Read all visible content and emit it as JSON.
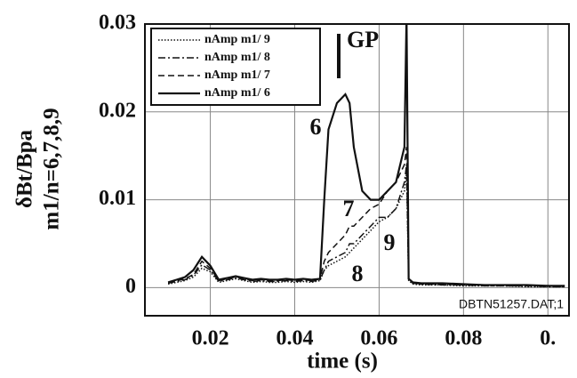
{
  "chart_data": {
    "type": "line",
    "x_label": "time (s)",
    "y_label": [
      "δBt/Bpa",
      "m1/n=6,7,8,9"
    ],
    "x": [
      0.006,
      0.008,
      0.01,
      0.012,
      0.014,
      0.016,
      0.018,
      0.02,
      0.022,
      0.024,
      0.026,
      0.028,
      0.03,
      0.032,
      0.034,
      0.036,
      0.038,
      0.04,
      0.042,
      0.044,
      0.046,
      0.047,
      0.048,
      0.05,
      0.052,
      0.053,
      0.054,
      0.056,
      0.058,
      0.06,
      0.062,
      0.064,
      0.066,
      0.0665,
      0.067,
      0.068,
      0.07,
      0.075,
      0.08,
      0.085,
      0.09,
      0.095,
      0.1,
      0.104
    ],
    "series": [
      {
        "name": "nAmp m1/ 9",
        "color": "#111111",
        "style": "dotted",
        "values": [
          null,
          null,
          0.0004,
          0.0006,
          0.0008,
          0.0012,
          0.0022,
          0.0018,
          0.0006,
          0.0008,
          0.001,
          0.0008,
          0.0006,
          0.0007,
          0.0006,
          0.0006,
          0.0007,
          0.0006,
          0.0007,
          0.0006,
          0.0008,
          0.002,
          0.0025,
          0.003,
          0.0035,
          0.004,
          0.0045,
          0.0055,
          0.0065,
          0.0075,
          0.008,
          0.009,
          0.011,
          0.013,
          0.0008,
          0.0004,
          0.0003,
          0.0003,
          0.0002,
          0.0002,
          0.0002,
          0.0001,
          0.0001,
          0.0001
        ]
      },
      {
        "name": "nAmp m1/ 8",
        "color": "#111111",
        "style": "dashdot",
        "values": [
          null,
          null,
          0.0005,
          0.0007,
          0.0009,
          0.0014,
          0.0026,
          0.002,
          0.0007,
          0.0009,
          0.0011,
          0.0009,
          0.0007,
          0.0008,
          0.0007,
          0.0007,
          0.0008,
          0.0007,
          0.0008,
          0.0007,
          0.0009,
          0.002,
          0.003,
          0.0035,
          0.004,
          0.005,
          0.005,
          0.006,
          0.007,
          0.008,
          0.008,
          0.009,
          0.012,
          0.014,
          0.001,
          0.0005,
          0.0004,
          0.0003,
          0.0003,
          0.0002,
          0.0002,
          0.0002,
          0.0001,
          0.0001
        ]
      },
      {
        "name": "nAmp m1/ 7",
        "color": "#111111",
        "style": "dashed",
        "values": [
          null,
          null,
          0.0005,
          0.0008,
          0.001,
          0.0015,
          0.003,
          0.0022,
          0.0008,
          0.001,
          0.0012,
          0.001,
          0.0008,
          0.0009,
          0.0008,
          0.0008,
          0.0009,
          0.0008,
          0.0009,
          0.0008,
          0.001,
          0.003,
          0.004,
          0.005,
          0.006,
          0.007,
          0.007,
          0.008,
          0.009,
          0.0095,
          0.011,
          0.012,
          0.014,
          0.016,
          0.001,
          0.0005,
          0.0004,
          0.0004,
          0.0003,
          0.0003,
          0.0002,
          0.0002,
          0.0002,
          0.0001
        ]
      },
      {
        "name": "nAmp m1/ 6",
        "color": "#111111",
        "style": "solid",
        "values": [
          null,
          null,
          0.0006,
          0.0009,
          0.0012,
          0.002,
          0.0035,
          0.0025,
          0.0009,
          0.0011,
          0.0013,
          0.0011,
          0.0009,
          0.001,
          0.0009,
          0.0009,
          0.001,
          0.0009,
          0.001,
          0.0009,
          0.001,
          0.01,
          0.018,
          0.021,
          0.022,
          0.021,
          0.016,
          0.011,
          0.01,
          0.01,
          0.011,
          0.012,
          0.016,
          0.031,
          0.001,
          0.0006,
          0.0005,
          0.0005,
          0.0004,
          0.0003,
          0.0003,
          0.0003,
          0.0002,
          0.0002
        ]
      }
    ],
    "annotations": [
      "GP",
      "6",
      "7",
      "8",
      "9",
      "DBTN51257.DAT;1"
    ],
    "xlim": [
      0.0045,
      0.105
    ],
    "ylim": [
      -0.0032,
      0.03
    ],
    "xticks": [
      0.02,
      0.04,
      0.06,
      0.08,
      {
        "value": 0.1,
        "label": "0."
      }
    ],
    "yticks": [
      0,
      0.01,
      0.02,
      0.03
    ],
    "grid": true,
    "legend": "upper-left"
  }
}
